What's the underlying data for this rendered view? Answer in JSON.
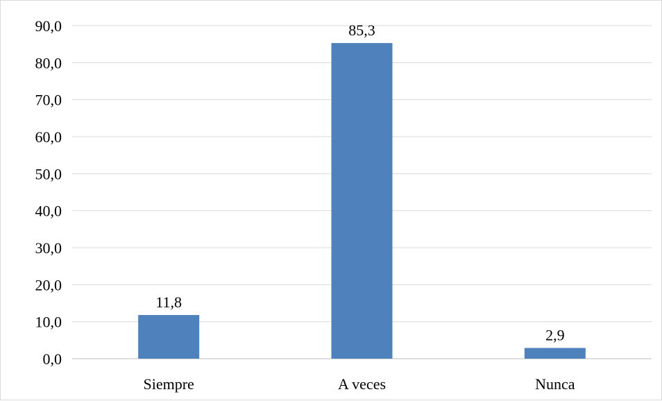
{
  "chart_data": {
    "type": "bar",
    "categories": [
      "Siempre",
      "A veces",
      "Nunca"
    ],
    "values": [
      11.8,
      85.3,
      2.9
    ],
    "value_labels": [
      "11,8",
      "85,3",
      "2,9"
    ],
    "title": "",
    "xlabel": "",
    "ylabel": "",
    "ylim": [
      0,
      90
    ],
    "y_ticks": [
      0,
      10,
      20,
      30,
      40,
      50,
      60,
      70,
      80,
      90
    ],
    "y_tick_labels": [
      "0,0",
      "10,0",
      "20,0",
      "30,0",
      "40,0",
      "50,0",
      "60,0",
      "70,0",
      "80,0",
      "90,0"
    ],
    "grid": true,
    "legend": "none",
    "colors": {
      "bar": "#4f81bd",
      "grid": "#d9d9d9",
      "axis": "#bfbfbf"
    }
  }
}
